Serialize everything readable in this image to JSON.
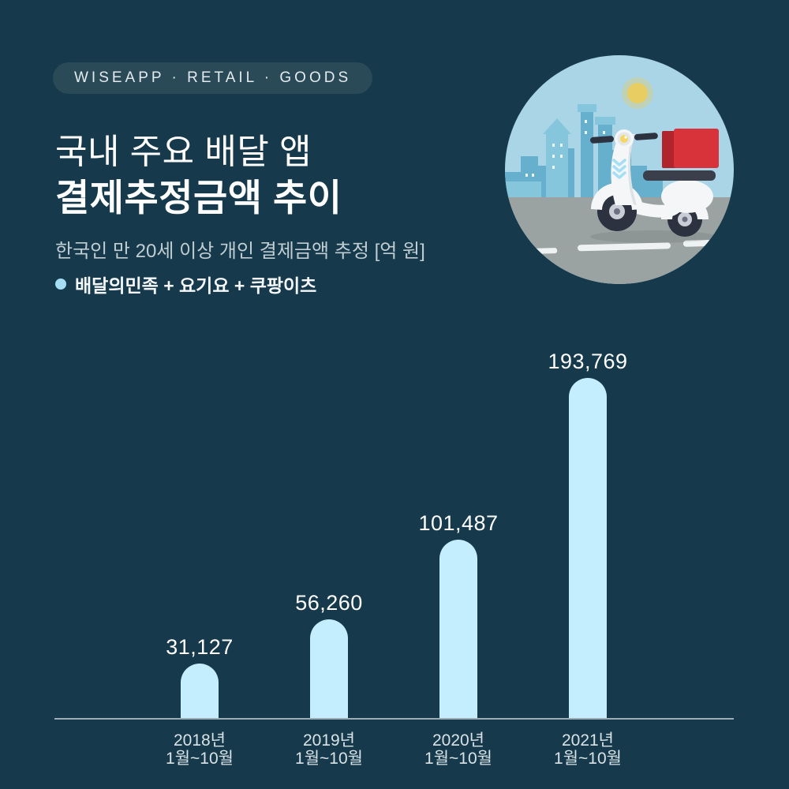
{
  "badge": {
    "label": "WISEAPP · RETAIL · GOODS"
  },
  "header": {
    "title_line1": "국내 주요 배달 앱",
    "title_line2": "결제추정금액 추이",
    "subtitle": "한국인 만 20세 이상 개인 결제금액 추정 [억 원]",
    "legend": {
      "label": "배달의민족 + 요기요 + 쿠팡이츠",
      "dot_color": "#a5dff5"
    }
  },
  "illustration": {
    "description": "delivery scooter with red box in front of blue city skyline, sun, road with lane dashes",
    "sky_color": "#a9d5e7",
    "road_color": "#9aa3a2",
    "box_color": "#d8333a"
  },
  "chart_data": {
    "type": "bar",
    "title": "국내 주요 배달 앱 결제추정금액 추이",
    "ylabel": "결제금액 추정 (억 원)",
    "unit": "억 원",
    "categories": [
      "2018년 1월~10월",
      "2019년 1월~10월",
      "2020년 1월~10월",
      "2021년 1월~10월"
    ],
    "category_lines": [
      [
        "2018년",
        "1월~10월"
      ],
      [
        "2019년",
        "1월~10월"
      ],
      [
        "2020년",
        "1월~10월"
      ],
      [
        "2021년",
        "1월~10월"
      ]
    ],
    "values": [
      31127,
      56260,
      101487,
      193769
    ],
    "value_labels": [
      "31,127",
      "56,260",
      "101,487",
      "193,769"
    ],
    "ylim": [
      0,
      200000
    ],
    "grid": false,
    "legend_position": "top-left",
    "bar_color": "#c4edfe",
    "value_label_color": "#ffffff",
    "axis_label_color": "#d9e2e6",
    "background_color": "#163a4b"
  }
}
